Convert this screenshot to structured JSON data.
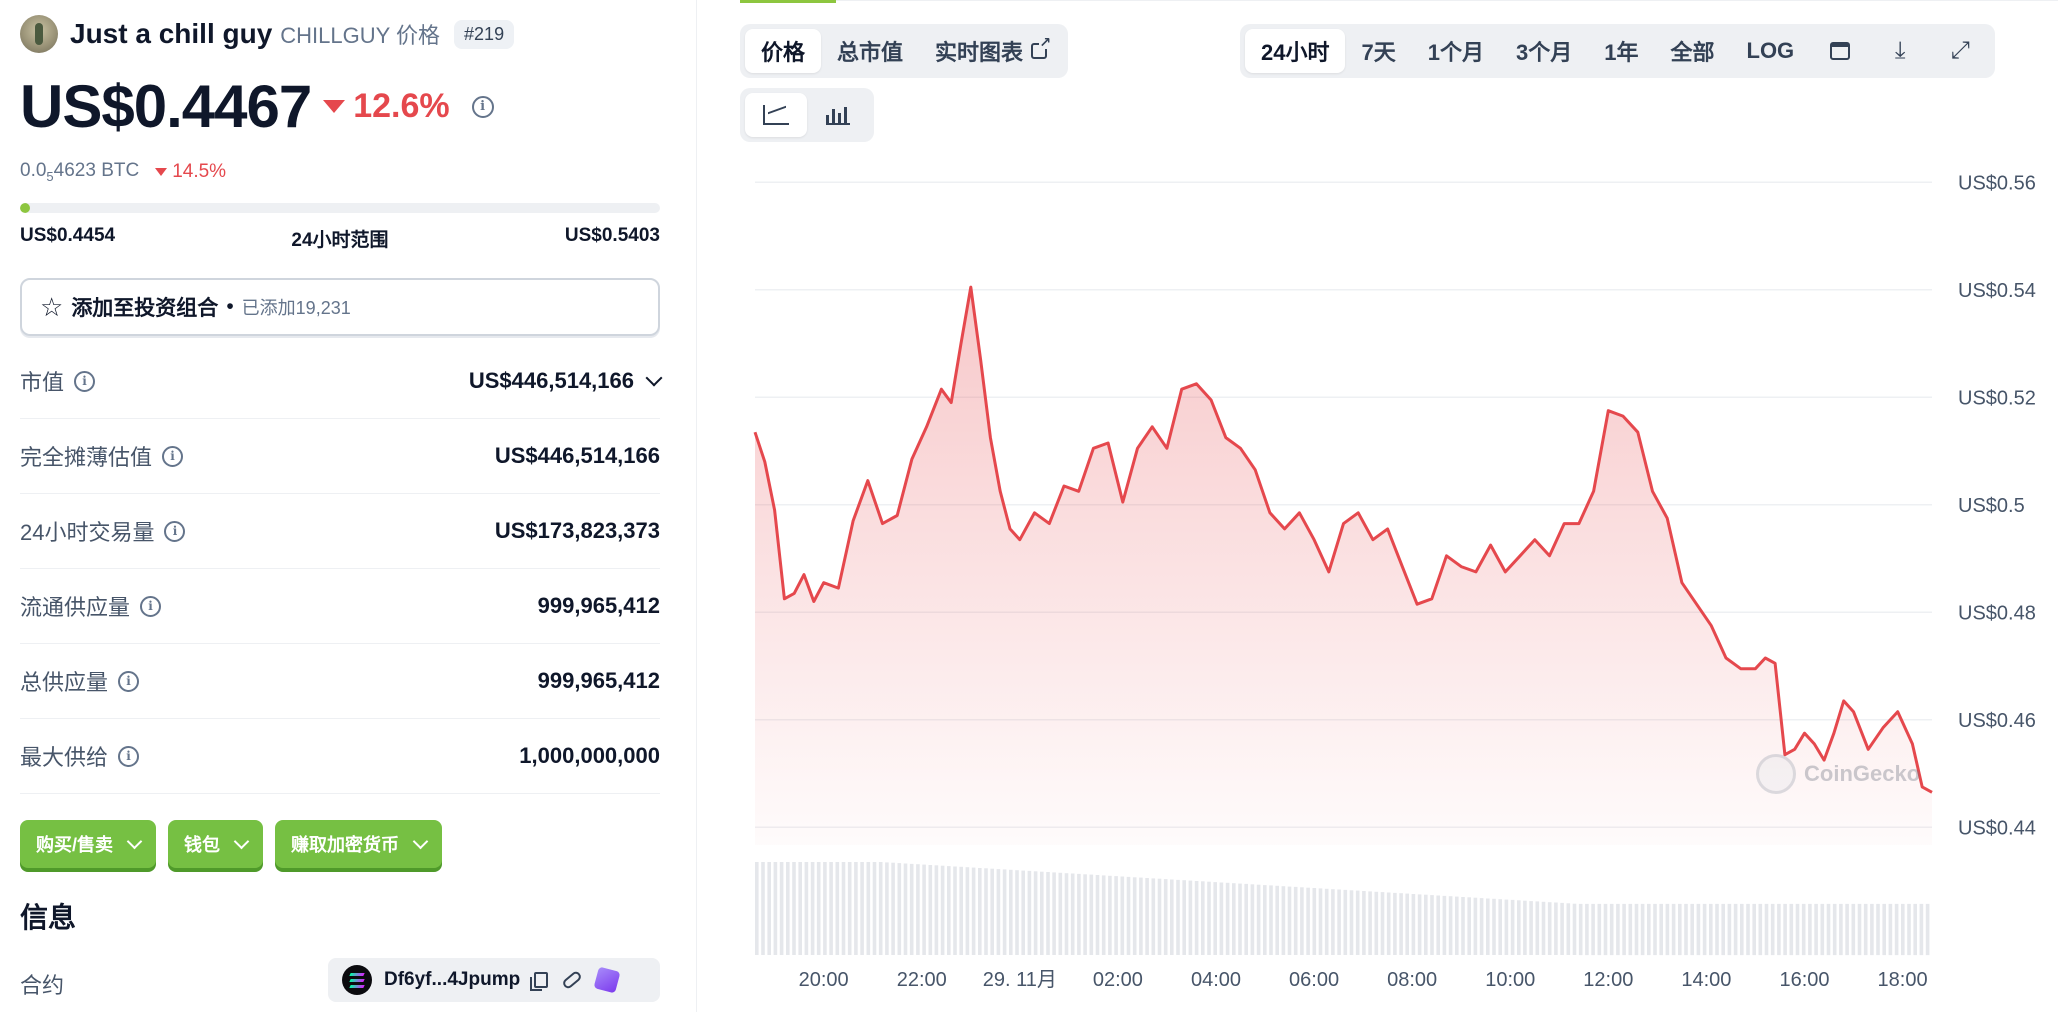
{
  "coin": {
    "name": "Just a chill guy",
    "symbol": "CHILLGUY 价格",
    "rank": "#219",
    "price": "US$0.4467",
    "change_24h": "12.6%",
    "btc_price_prefix": "0.0",
    "btc_price_sub": "5",
    "btc_price_suffix": "4623 BTC",
    "btc_change": "14.5%",
    "range_low": "US$0.4454",
    "range_label": "24小时范围",
    "range_high": "US$0.5403",
    "range_position": 0.01
  },
  "portfolio": {
    "label": "添加至投资组合",
    "dot": "•",
    "added": "已添加19,231"
  },
  "stats": [
    {
      "label": "市值",
      "value": "US$446,514,166"
    },
    {
      "label": "完全摊薄估值",
      "value": "US$446,514,166"
    },
    {
      "label": "24小时交易量",
      "value": "US$173,823,373"
    },
    {
      "label": "流通供应量",
      "value": "999,965,412"
    },
    {
      "label": "总供应量",
      "value": "999,965,412"
    },
    {
      "label": "最大供给",
      "value": "1,000,000,000"
    }
  ],
  "actions": [
    "购买/售卖",
    "钱包",
    "赚取加密货币"
  ],
  "info": {
    "title": "信息",
    "contract_label": "合约",
    "contract_value": "Df6yf...4Jpump"
  },
  "chart_tabs": [
    "价格",
    "总市值",
    "实时图表"
  ],
  "range_tabs": [
    "24小时",
    "7天",
    "1个月",
    "3个月",
    "1年",
    "全部",
    "LOG"
  ],
  "icons": {
    "calendar": "calendar-icon",
    "download": "download-icon",
    "fullscreen": "fullscreen-icon",
    "line_chart": "line-chart-icon",
    "candle_chart": "candlestick-chart-icon"
  },
  "watermark": "CoinGecko",
  "colors": {
    "line": "#e5484d",
    "accent_green": "#76c043",
    "negative": "#e5484d"
  },
  "chart_data": {
    "type": "area",
    "y_ticks": [
      "US$0.56",
      "US$0.54",
      "US$0.52",
      "US$0.5",
      "US$0.48",
      "US$0.46",
      "US$0.44"
    ],
    "y_tick_values": [
      0.56,
      0.54,
      0.52,
      0.5,
      0.48,
      0.46,
      0.44
    ],
    "ylim": [
      0.4367,
      0.5567
    ],
    "x_ticks": [
      "20:00",
      "22:00",
      "29. 11月",
      "02:00",
      "04:00",
      "06:00",
      "08:00",
      "10:00",
      "12:00",
      "14:00",
      "16:00",
      "18:00"
    ],
    "x_tick_hours": [
      20,
      22,
      24,
      26,
      28,
      30,
      32,
      34,
      36,
      38,
      40,
      42
    ],
    "xlim_hours": [
      18.6,
      42.6
    ],
    "grid": true,
    "series": [
      {
        "hours": [
          18.6,
          18.8,
          19.0,
          19.2,
          19.4,
          19.6,
          19.8,
          20.0,
          20.3,
          20.6,
          20.9,
          21.2,
          21.5,
          21.8,
          22.1,
          22.4,
          22.6,
          22.8,
          23.0,
          23.2,
          23.4,
          23.6,
          23.8,
          24.0,
          24.3,
          24.6,
          24.9,
          25.2,
          25.5,
          25.8,
          26.1,
          26.4,
          26.7,
          27.0,
          27.3,
          27.6,
          27.9,
          28.2,
          28.5,
          28.8,
          29.1,
          29.4,
          29.7,
          30.0,
          30.3,
          30.6,
          30.9,
          31.2,
          31.5,
          31.8,
          32.1,
          32.4,
          32.7,
          33.0,
          33.3,
          33.6,
          33.9,
          34.2,
          34.5,
          34.8,
          35.1,
          35.4,
          35.7,
          36.0,
          36.3,
          36.6,
          36.9,
          37.2,
          37.5,
          37.8,
          38.1,
          38.4,
          38.7,
          39.0,
          39.2,
          39.4,
          39.6,
          39.8,
          40.0,
          40.2,
          40.4,
          40.6,
          40.8,
          41.0,
          41.3,
          41.6,
          41.9,
          42.2,
          42.4,
          42.6
        ],
        "values": [
          0.5135,
          0.508,
          0.499,
          0.4825,
          0.4835,
          0.487,
          0.482,
          0.4855,
          0.4845,
          0.497,
          0.5045,
          0.4965,
          0.498,
          0.5085,
          0.5145,
          0.5215,
          0.519,
          0.53,
          0.5405,
          0.527,
          0.5125,
          0.5025,
          0.4955,
          0.4935,
          0.4985,
          0.4965,
          0.5035,
          0.5025,
          0.5105,
          0.5115,
          0.5005,
          0.5105,
          0.5145,
          0.5105,
          0.5215,
          0.5225,
          0.5195,
          0.5125,
          0.5105,
          0.5065,
          0.4985,
          0.4955,
          0.4985,
          0.4935,
          0.4875,
          0.4965,
          0.4985,
          0.4935,
          0.4955,
          0.4885,
          0.4815,
          0.4825,
          0.4905,
          0.4885,
          0.4875,
          0.4925,
          0.4875,
          0.4905,
          0.4935,
          0.4905,
          0.4965,
          0.4965,
          0.5025,
          0.5175,
          0.5165,
          0.5135,
          0.5025,
          0.4975,
          0.4855,
          0.4815,
          0.4775,
          0.4715,
          0.4695,
          0.4695,
          0.4715,
          0.4705,
          0.4535,
          0.4545,
          0.4575,
          0.4555,
          0.4525,
          0.4575,
          0.4635,
          0.4615,
          0.4545,
          0.4585,
          0.4615,
          0.4555,
          0.4475,
          0.4465
        ]
      }
    ],
    "volume": "relative trading volume bars under the price area, gradually decreasing across the day"
  }
}
